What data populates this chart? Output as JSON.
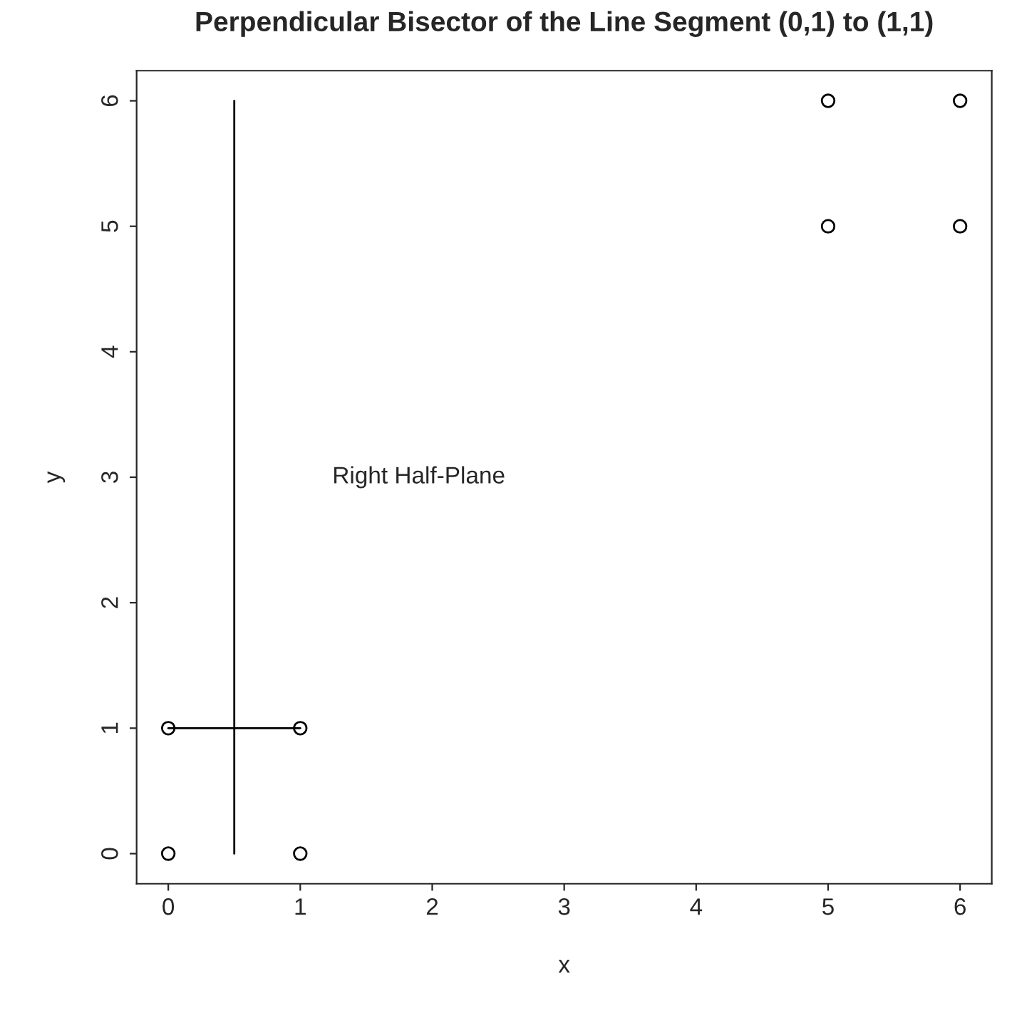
{
  "chart_data": {
    "type": "scatter",
    "title": "Perpendicular Bisector of the Line Segment (0,1) to (1,1)",
    "xlabel": "x",
    "ylabel": "y",
    "series": [
      {
        "color": "#000000",
        "marker": "circle",
        "x": [
          0,
          1,
          0,
          1,
          5,
          6,
          5,
          6
        ],
        "values": [
          0,
          0,
          1,
          1,
          5,
          5,
          6,
          6
        ]
      },
      {
        "type": "line",
        "color": "#000000",
        "marker": "none",
        "line_style": "solid",
        "x": [
          0,
          1
        ],
        "values": [
          1,
          1
        ]
      },
      {
        "type": "line",
        "color": "#000000",
        "marker": "none",
        "line_style": "solid",
        "x": [
          0.5,
          0.5
        ],
        "values": [
          0,
          6
        ]
      }
    ],
    "annotations": [
      "Right Half-Plane"
    ],
    "xlim": [
      -0.24,
      6.24
    ],
    "ylim": [
      -0.24,
      6.24
    ],
    "xticks": [
      0,
      1,
      2,
      3,
      4,
      5,
      6
    ],
    "yticks": [
      0,
      1,
      2,
      3,
      4,
      5,
      6
    ],
    "grid": false,
    "legend": false
  }
}
